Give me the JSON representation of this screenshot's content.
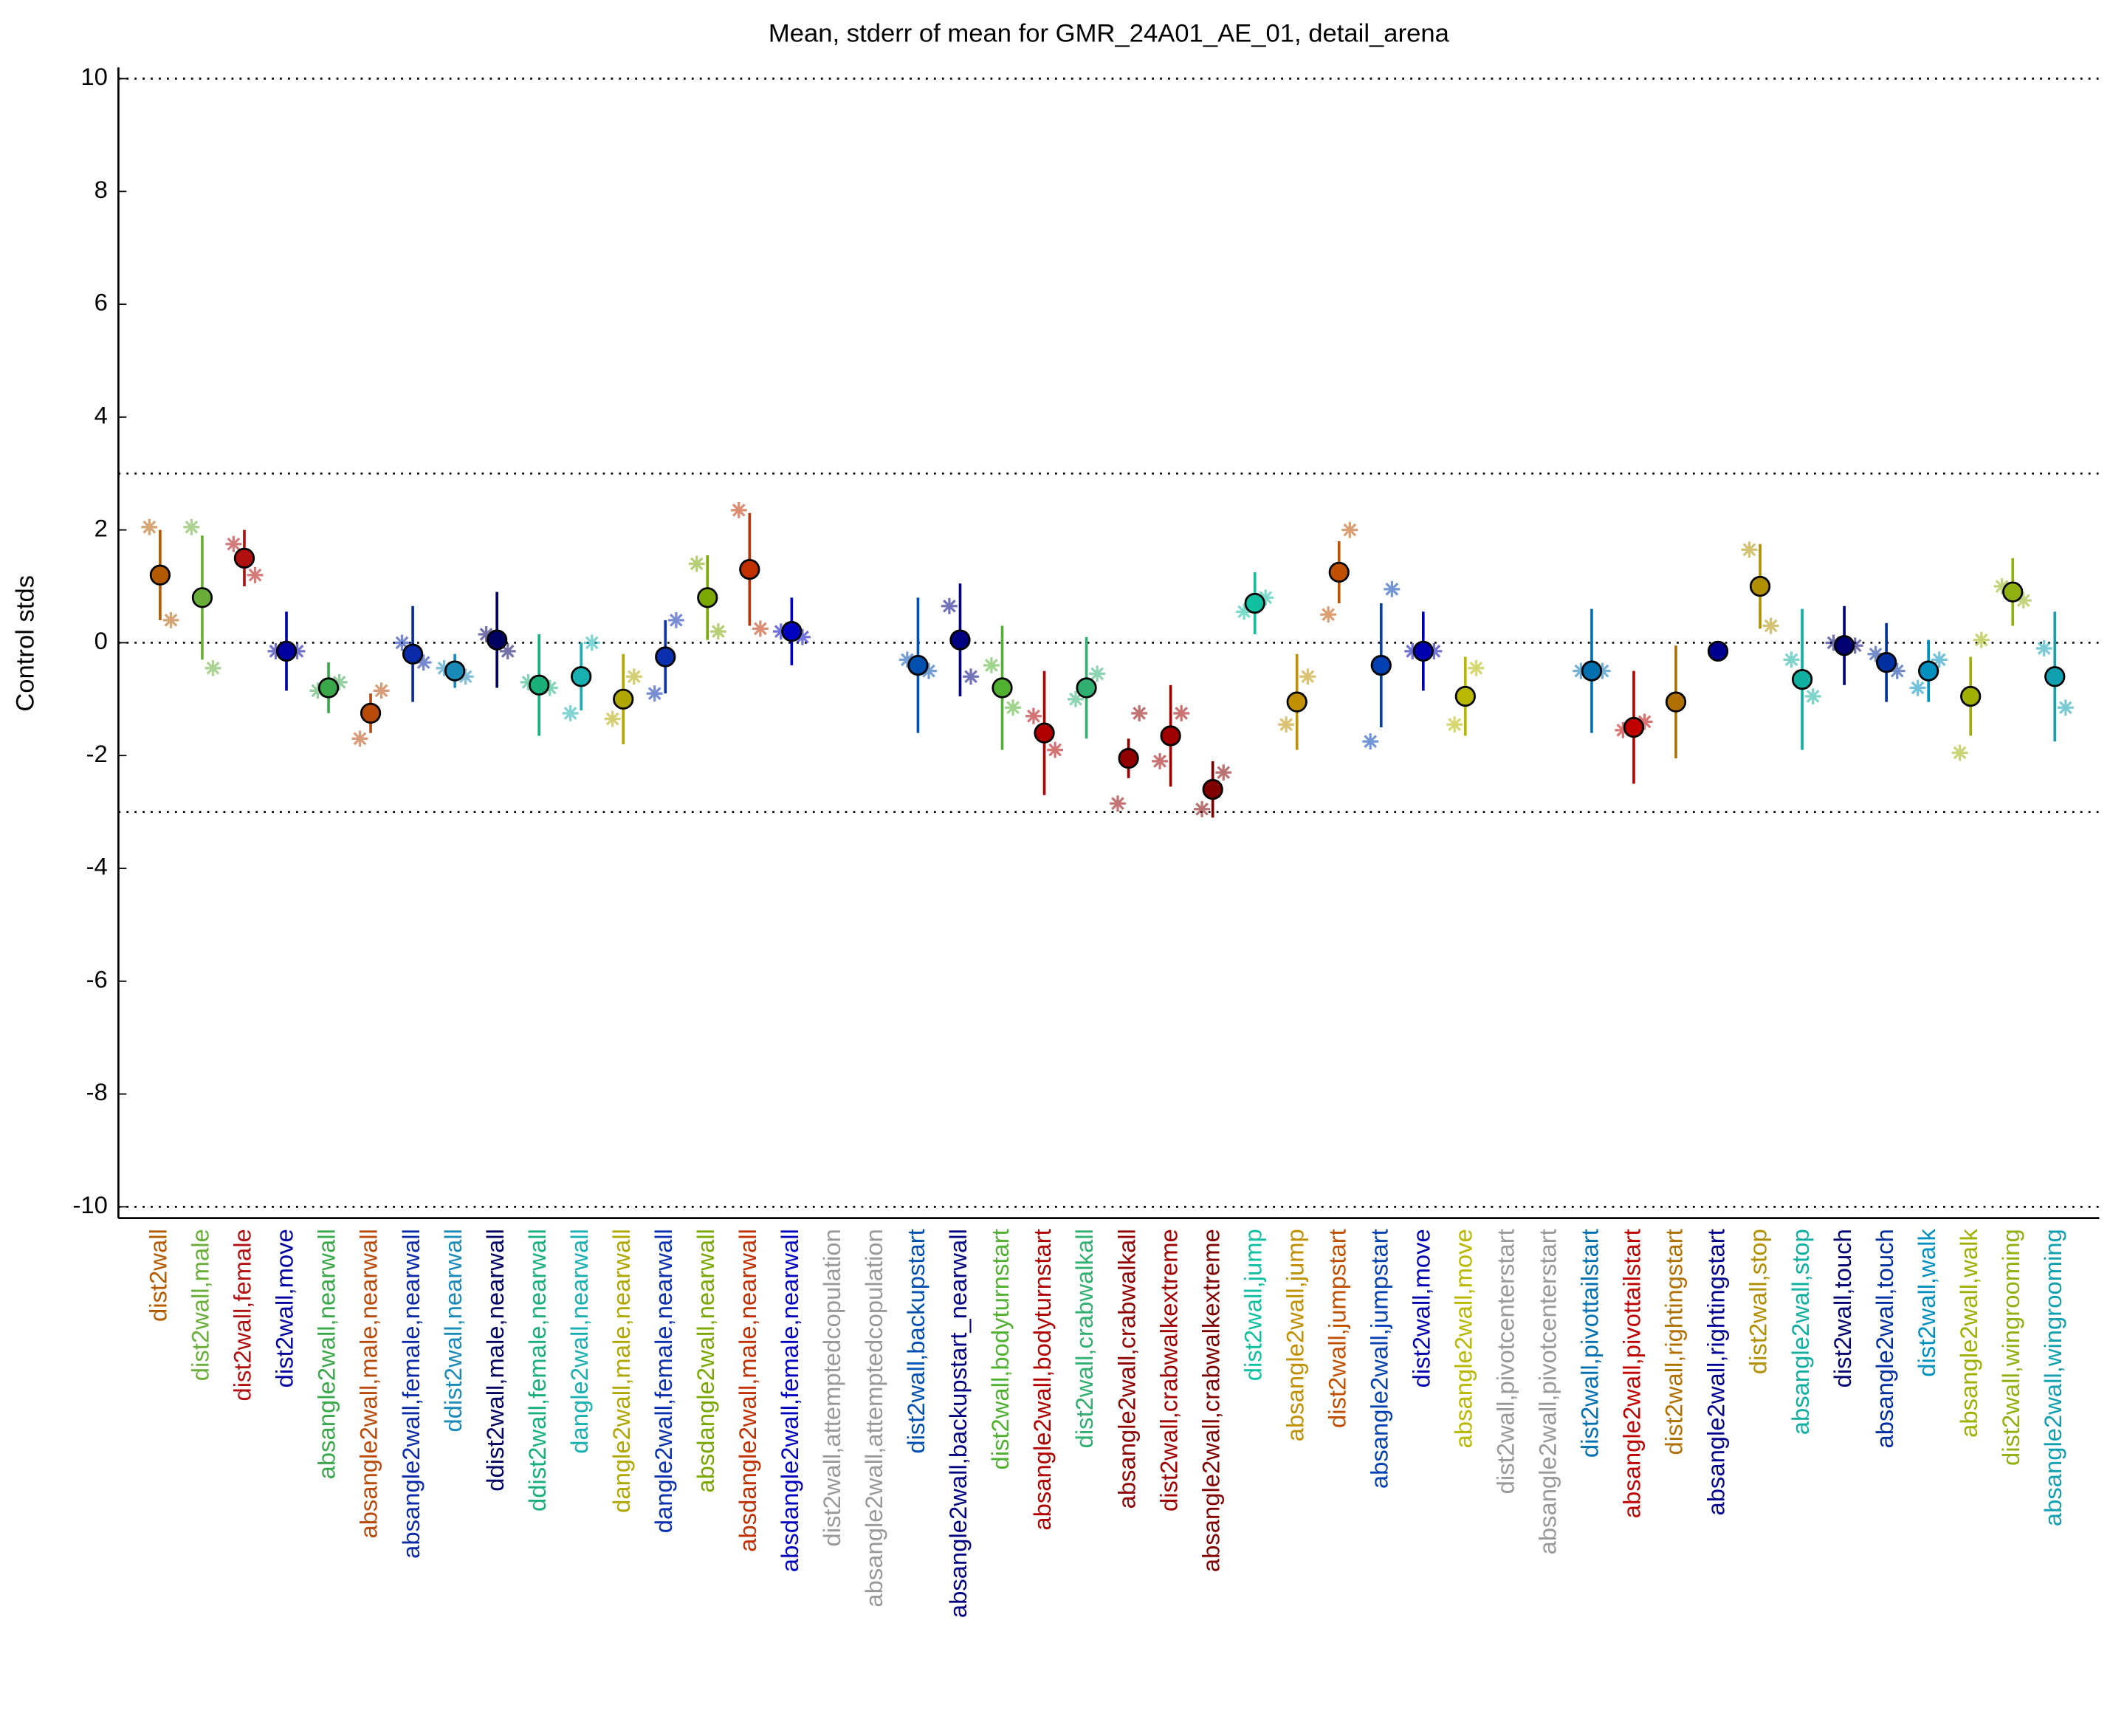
{
  "chart_data": {
    "type": "errorbar",
    "title": "Mean, stderr of mean for GMR_24A01_AE_01, detail_arena",
    "y_label": "Control stds",
    "categories": [
      "dist2wall",
      "dist2wall,male",
      "dist2wall,female",
      "dist2wall,move",
      "absangle2wall,nearwall",
      "absangle2wall,male,nearwall",
      "absangle2wall,female,nearwall",
      "ddist2wall,nearwall",
      "ddist2wall,male,nearwall",
      "ddist2wall,female,nearwall",
      "dangle2wall,nearwall",
      "dangle2wall,male,nearwall",
      "dangle2wall,female,nearwall",
      "absdangle2wall,nearwall",
      "absdangle2wall,male,nearwall",
      "absdangle2wall,female,nearwall",
      "dist2wall,attemptedcopulation",
      "absangle2wall,attemptedcopulation",
      "dist2wall,backupstart",
      "absangle2wall,backupstart_nearwall",
      "dist2wall,bodyturnstart",
      "absangle2wall,bodyturnstart",
      "dist2wall,crabwalkall",
      "absangle2wall,crabwalkall",
      "dist2wall,crabwalkextreme",
      "absangle2wall,crabwalkextreme",
      "dist2wall,jump",
      "absangle2wall,jump",
      "dist2wall,jumpstart",
      "absangle2wall,jumpstart",
      "dist2wall,move",
      "absangle2wall,move",
      "dist2wall,pivotcenterstart",
      "absangle2wall,pivotcenterstart",
      "dist2wall,pivottailstart",
      "absangle2wall,pivottailstart",
      "dist2wall,rightingstart",
      "absangle2wall,rightingstart",
      "dist2wall,stop",
      "absangle2wall,stop",
      "dist2wall,touch",
      "absangle2wall,touch",
      "dist2wall,walk",
      "absangle2wall,walk",
      "dist2wall,wingrooming",
      "absangle2wall,wingrooming"
    ],
    "colors": [
      "#b35900",
      "#6aae3a",
      "#b01010",
      "#0000a0",
      "#3aa84a",
      "#b84a0a",
      "#0a2aa8",
      "#1a8ab8",
      "#000060",
      "#1ab07a",
      "#18b0b0",
      "#b0a800",
      "#0a30b0",
      "#7aa800",
      "#c03000",
      "#0000c0",
      "#999999",
      "#999999",
      "#0050b0",
      "#000080",
      "#50b030",
      "#b00000",
      "#30b070",
      "#900000",
      "#a00000",
      "#800000",
      "#10c0a0",
      "#c09000",
      "#c05000",
      "#0040b0",
      "#0000b0",
      "#b8b800",
      "#999999",
      "#999999",
      "#0070b0",
      "#c00000",
      "#b07000",
      "#000090",
      "#b09000",
      "#10b0a0",
      "#000070",
      "#0030a0",
      "#0090c0",
      "#a0b000",
      "#90b010",
      "#10a0b0"
    ],
    "values": [
      1.2,
      0.8,
      1.5,
      -0.15,
      -0.8,
      -1.25,
      -0.2,
      -0.5,
      0.05,
      -0.75,
      -0.6,
      -1.0,
      -0.25,
      0.8,
      1.3,
      0.2,
      null,
      null,
      -0.4,
      0.05,
      -0.8,
      -1.6,
      -0.8,
      -2.05,
      -1.65,
      -2.6,
      0.7,
      -1.05,
      1.25,
      -0.4,
      -0.15,
      -0.95,
      null,
      null,
      -0.5,
      -1.5,
      -1.05,
      -0.15,
      1.0,
      -0.65,
      -0.05,
      -0.35,
      -0.5,
      -0.95,
      0.9,
      -0.6
    ],
    "errors": [
      0.8,
      1.1,
      0.5,
      0.7,
      0.45,
      0.35,
      0.85,
      0.3,
      0.85,
      0.9,
      0.6,
      0.8,
      0.65,
      0.75,
      1.0,
      0.6,
      null,
      null,
      1.2,
      1.0,
      1.1,
      1.1,
      0.9,
      0.35,
      0.9,
      0.5,
      0.55,
      0.85,
      0.55,
      1.1,
      0.7,
      0.7,
      null,
      null,
      1.1,
      1.0,
      1.0,
      0.1,
      0.75,
      1.25,
      0.7,
      0.7,
      0.55,
      0.7,
      0.6,
      1.15
    ],
    "male_values": [
      2.05,
      2.05,
      1.75,
      -0.15,
      -0.85,
      -1.7,
      0.0,
      -0.45,
      0.15,
      -0.7,
      -1.25,
      -1.35,
      -0.9,
      1.4,
      2.35,
      0.2,
      null,
      null,
      -0.3,
      0.65,
      -0.4,
      -1.3,
      -1.0,
      -2.85,
      -2.1,
      -2.95,
      0.55,
      -1.45,
      0.5,
      -1.75,
      -0.15,
      -1.45,
      null,
      null,
      -0.5,
      -1.55,
      null,
      null,
      1.65,
      -0.3,
      0.0,
      -0.2,
      -0.8,
      -1.95,
      1.0,
      -0.1
    ],
    "female_values": [
      0.4,
      -0.45,
      1.2,
      -0.15,
      -0.7,
      -0.85,
      -0.35,
      -0.6,
      -0.15,
      -0.8,
      0.0,
      -0.6,
      0.4,
      0.2,
      0.25,
      0.1,
      null,
      null,
      -0.5,
      -0.6,
      -1.15,
      -1.9,
      -0.55,
      -1.25,
      -1.25,
      -2.3,
      0.8,
      -0.6,
      2.0,
      0.95,
      -0.15,
      -0.45,
      null,
      null,
      -0.5,
      -1.4,
      null,
      null,
      0.3,
      -0.95,
      -0.05,
      -0.5,
      -0.3,
      0.05,
      0.75,
      -1.15
    ],
    "ylim": [
      -10.2,
      10.2
    ],
    "yticks": [
      -10,
      -8,
      -6,
      -4,
      -2,
      0,
      2,
      4,
      6,
      8,
      10
    ],
    "reference_lines": [
      10,
      3,
      0,
      -3,
      -10
    ]
  }
}
